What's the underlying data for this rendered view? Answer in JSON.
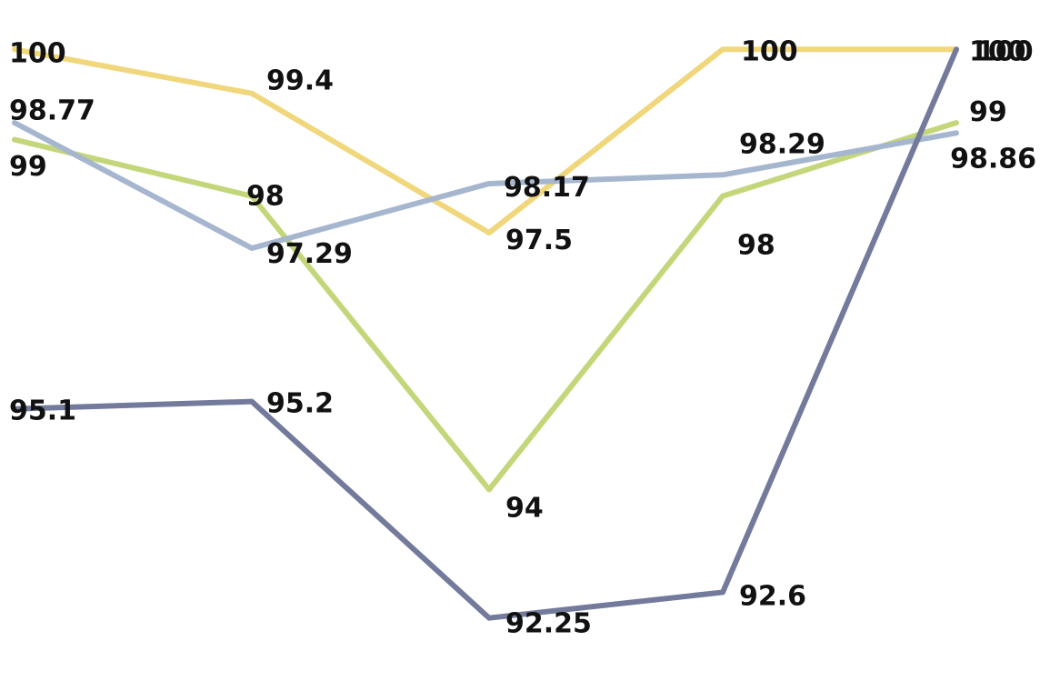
{
  "chart_data": {
    "type": "line",
    "categories": [
      "",
      "",
      "",
      "",
      ""
    ],
    "ylim": [
      91.8,
      100.4
    ],
    "grid": false,
    "legend": "none",
    "axes_visible": false,
    "series": [
      {
        "color": "#f0d77b",
        "values": [
          100,
          99.4,
          97.5,
          100,
          100
        ],
        "labels": [
          "100",
          "99.4",
          "97.5",
          "100",
          "100"
        ]
      },
      {
        "color": "#c3d77a",
        "values": [
          98.77,
          98,
          94,
          98,
          99
        ],
        "labels": [
          "98.77",
          "98",
          "94",
          "98",
          "99"
        ]
      },
      {
        "color": "#a6b6cf",
        "values": [
          99,
          97.29,
          98.17,
          98.29,
          98.86
        ],
        "labels": [
          "99",
          "97.29",
          "98.17",
          "98.29",
          "98.86"
        ]
      },
      {
        "color": "#737a9b",
        "values": [
          95.1,
          95.2,
          92.25,
          92.6,
          100
        ],
        "labels": [
          "95.1",
          "95.2",
          "92.25",
          "92.6",
          "100"
        ]
      }
    ]
  }
}
